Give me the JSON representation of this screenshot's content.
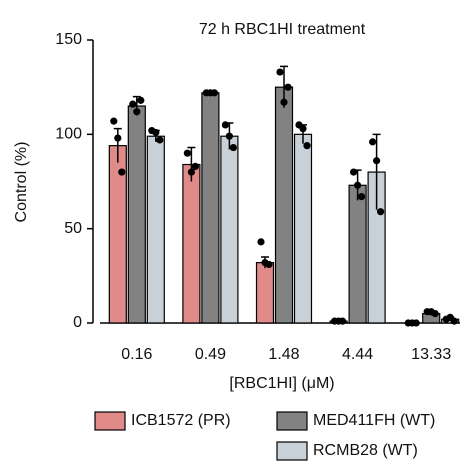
{
  "chart_data": {
    "type": "bar",
    "title": "72 h RBC1HI treatment",
    "y_label": "Control (%)",
    "x_label": "[RBC1HI] (μM)",
    "categories": [
      "0.16",
      "0.49",
      "1.48",
      "4.44",
      "13.33"
    ],
    "series": [
      {
        "name": "ICB1572 (PR)",
        "color": "#e08a8a",
        "values": [
          94,
          84,
          32,
          1,
          0
        ],
        "errors": [
          9,
          9,
          3,
          1,
          0.5
        ],
        "points": [
          [
            107,
            98,
            80
          ],
          [
            90,
            80,
            83
          ],
          [
            43,
            32,
            31
          ],
          [
            1,
            1,
            1
          ],
          [
            0,
            0,
            0
          ]
        ]
      },
      {
        "name": "MED411FH (WT)",
        "color": "#828282",
        "values": [
          115,
          122,
          125,
          73,
          5
        ],
        "errors": [
          5,
          1,
          11,
          8,
          1
        ],
        "points": [
          [
            116,
            112,
            118
          ],
          [
            122,
            122,
            122
          ],
          [
            133,
            117,
            125
          ],
          [
            80,
            73,
            67
          ],
          [
            6,
            6,
            5
          ]
        ]
      },
      {
        "name": "RCMB28 (WT)",
        "color": "#c8d0d8",
        "values": [
          99,
          99,
          100,
          80,
          2
        ],
        "errors": [
          3,
          7,
          5,
          20,
          1
        ],
        "points": [
          [
            102,
            101,
            97
          ],
          [
            105,
            99,
            93
          ],
          [
            105,
            103,
            94
          ],
          [
            96,
            86,
            59
          ],
          [
            2,
            3,
            1
          ]
        ]
      }
    ],
    "ylim": [
      0,
      150
    ],
    "yticks": [
      0,
      50,
      100,
      150
    ]
  }
}
